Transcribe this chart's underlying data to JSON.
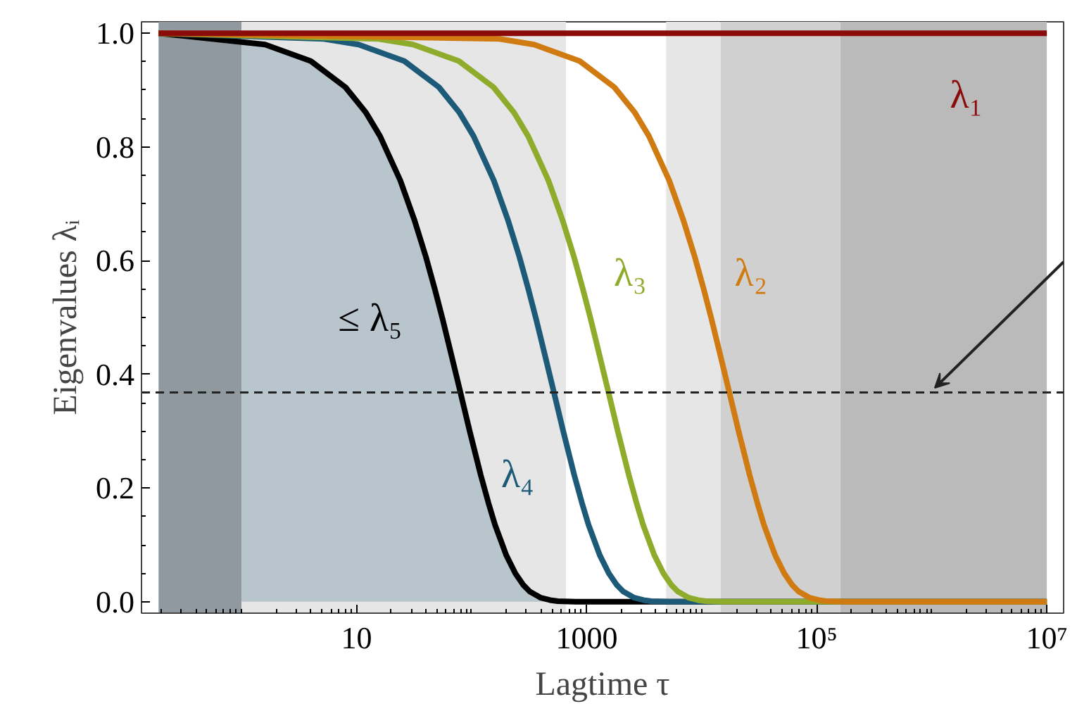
{
  "chart_data": {
    "type": "line",
    "xlabel": "Lagtime τ",
    "ylabel": "Eigenvalues λᵢ",
    "log": "x",
    "xlim": [
      0.135,
      14000000
    ],
    "ylim": [
      -0.02,
      1.02
    ],
    "xticks": [
      10,
      1000,
      {
        "value": 100000,
        "label": "10⁵"
      },
      {
        "value": 10000000,
        "label": "10⁷"
      }
    ],
    "yticks": [
      {
        "value": 0,
        "label": "0.0"
      },
      {
        "value": 0.2,
        "label": "0.2"
      },
      {
        "value": 0.4,
        "label": "0.4"
      },
      {
        "value": 0.6,
        "label": "0.6"
      },
      {
        "value": 0.8,
        "label": "0.8"
      },
      {
        "value": 1,
        "label": "1.0"
      }
    ],
    "line_style": "solid",
    "grid": false,
    "legend": false,
    "marker": "none",
    "series": [
      {
        "type": "area",
        "color": "#b9c5cc",
        "x": [
          1,
          1.6,
          4,
          8,
          12,
          16,
          24,
          32,
          40,
          48,
          56,
          68,
          80,
          96,
          120,
          140,
          160,
          200,
          240,
          280,
          320,
          400,
          480,
          560,
          800,
          10000000
        ],
        "values": [
          0.988,
          0.98,
          0.951,
          0.905,
          0.861,
          0.819,
          0.741,
          0.67,
          0.607,
          0.549,
          0.497,
          0.427,
          0.368,
          0.301,
          0.223,
          0.174,
          0.135,
          0.082,
          0.05,
          0.03,
          0.018,
          0.007,
          0.003,
          0.001,
          0,
          0
        ]
      },
      {
        "name": "λ₁",
        "color": "#8b0a0a",
        "x": [
          0.19,
          10000000
        ],
        "values": [
          1,
          1
        ]
      },
      {
        "name": "λ₂",
        "color": "#d07b12",
        "x": [
          0.19,
          174,
          348,
          870,
          1740,
          2610,
          3480,
          5220,
          6960,
          8700,
          10440,
          12180,
          14790,
          17400,
          20880,
          26100,
          30450,
          34800,
          43500,
          52200,
          60900,
          69600,
          87000,
          104400,
          121800,
          174000,
          10000000
        ],
        "values": [
          1,
          0.99,
          0.98,
          0.951,
          0.905,
          0.861,
          0.819,
          0.741,
          0.67,
          0.607,
          0.549,
          0.497,
          0.427,
          0.368,
          0.301,
          0.223,
          0.174,
          0.135,
          0.082,
          0.05,
          0.03,
          0.018,
          0.007,
          0.003,
          0.001,
          0,
          0
        ]
      },
      {
        "name": "λ₃",
        "color": "#8fab2b",
        "x": [
          0.19,
          15.5,
          31,
          77.5,
          155,
          232.5,
          310,
          465,
          620,
          775,
          930,
          1085,
          1317.5,
          1550,
          1860,
          2325,
          2712.5,
          3100,
          3875,
          4650,
          5425,
          6200,
          7750,
          9300,
          10850,
          15500,
          10000000
        ],
        "values": [
          1,
          0.99,
          0.98,
          0.951,
          0.905,
          0.861,
          0.819,
          0.741,
          0.67,
          0.607,
          0.549,
          0.497,
          0.427,
          0.368,
          0.301,
          0.223,
          0.174,
          0.135,
          0.082,
          0.05,
          0.03,
          0.018,
          0.007,
          0.003,
          0.001,
          0,
          0
        ]
      },
      {
        "name": "λ₄",
        "color": "#1d5a78",
        "x": [
          0.19,
          5.2,
          10.4,
          26,
          52,
          78,
          104,
          156,
          208,
          260,
          312,
          364,
          442,
          520,
          624,
          780,
          910,
          1040,
          1300,
          1560,
          1820,
          2080,
          2600,
          3120,
          3640,
          5200,
          10000000
        ],
        "values": [
          1,
          0.99,
          0.98,
          0.951,
          0.905,
          0.861,
          0.819,
          0.741,
          0.67,
          0.607,
          0.549,
          0.497,
          0.427,
          0.368,
          0.301,
          0.223,
          0.174,
          0.135,
          0.082,
          0.05,
          0.03,
          0.018,
          0.007,
          0.003,
          0.001,
          0,
          0
        ]
      },
      {
        "name": "≤ λ₅",
        "color": "#000000",
        "x": [
          0.19,
          1.6,
          4,
          8,
          12,
          16,
          24,
          32,
          40,
          48,
          56,
          68,
          80,
          96,
          120,
          140,
          160,
          200,
          240,
          280,
          320,
          400,
          480,
          560,
          800,
          10000000
        ],
        "values": [
          1,
          0.98,
          0.951,
          0.905,
          0.861,
          0.819,
          0.741,
          0.67,
          0.607,
          0.549,
          0.497,
          0.427,
          0.368,
          0.301,
          0.223,
          0.174,
          0.135,
          0.082,
          0.05,
          0.03,
          0.018,
          0.007,
          0.003,
          0.001,
          0,
          0
        ]
      }
    ],
    "bands": [
      {
        "axis": "x",
        "from": 0.19,
        "to": 1,
        "color": "#9199a0"
      },
      {
        "axis": "x",
        "from": 1,
        "to": 660,
        "color": "#e6e6e6"
      },
      {
        "axis": "x",
        "from": 4900,
        "to": 14600,
        "color": "#e6e6e6"
      },
      {
        "axis": "x",
        "from": 14600,
        "to": 160000,
        "color": "#d0d0d0"
      },
      {
        "axis": "x",
        "from": 160000,
        "to": 10000000,
        "color": "#bababa"
      }
    ],
    "ref_lines": [
      {
        "axis": "y",
        "value": 0.368,
        "color": "#222222",
        "line_style": "dashed"
      }
    ]
  }
}
